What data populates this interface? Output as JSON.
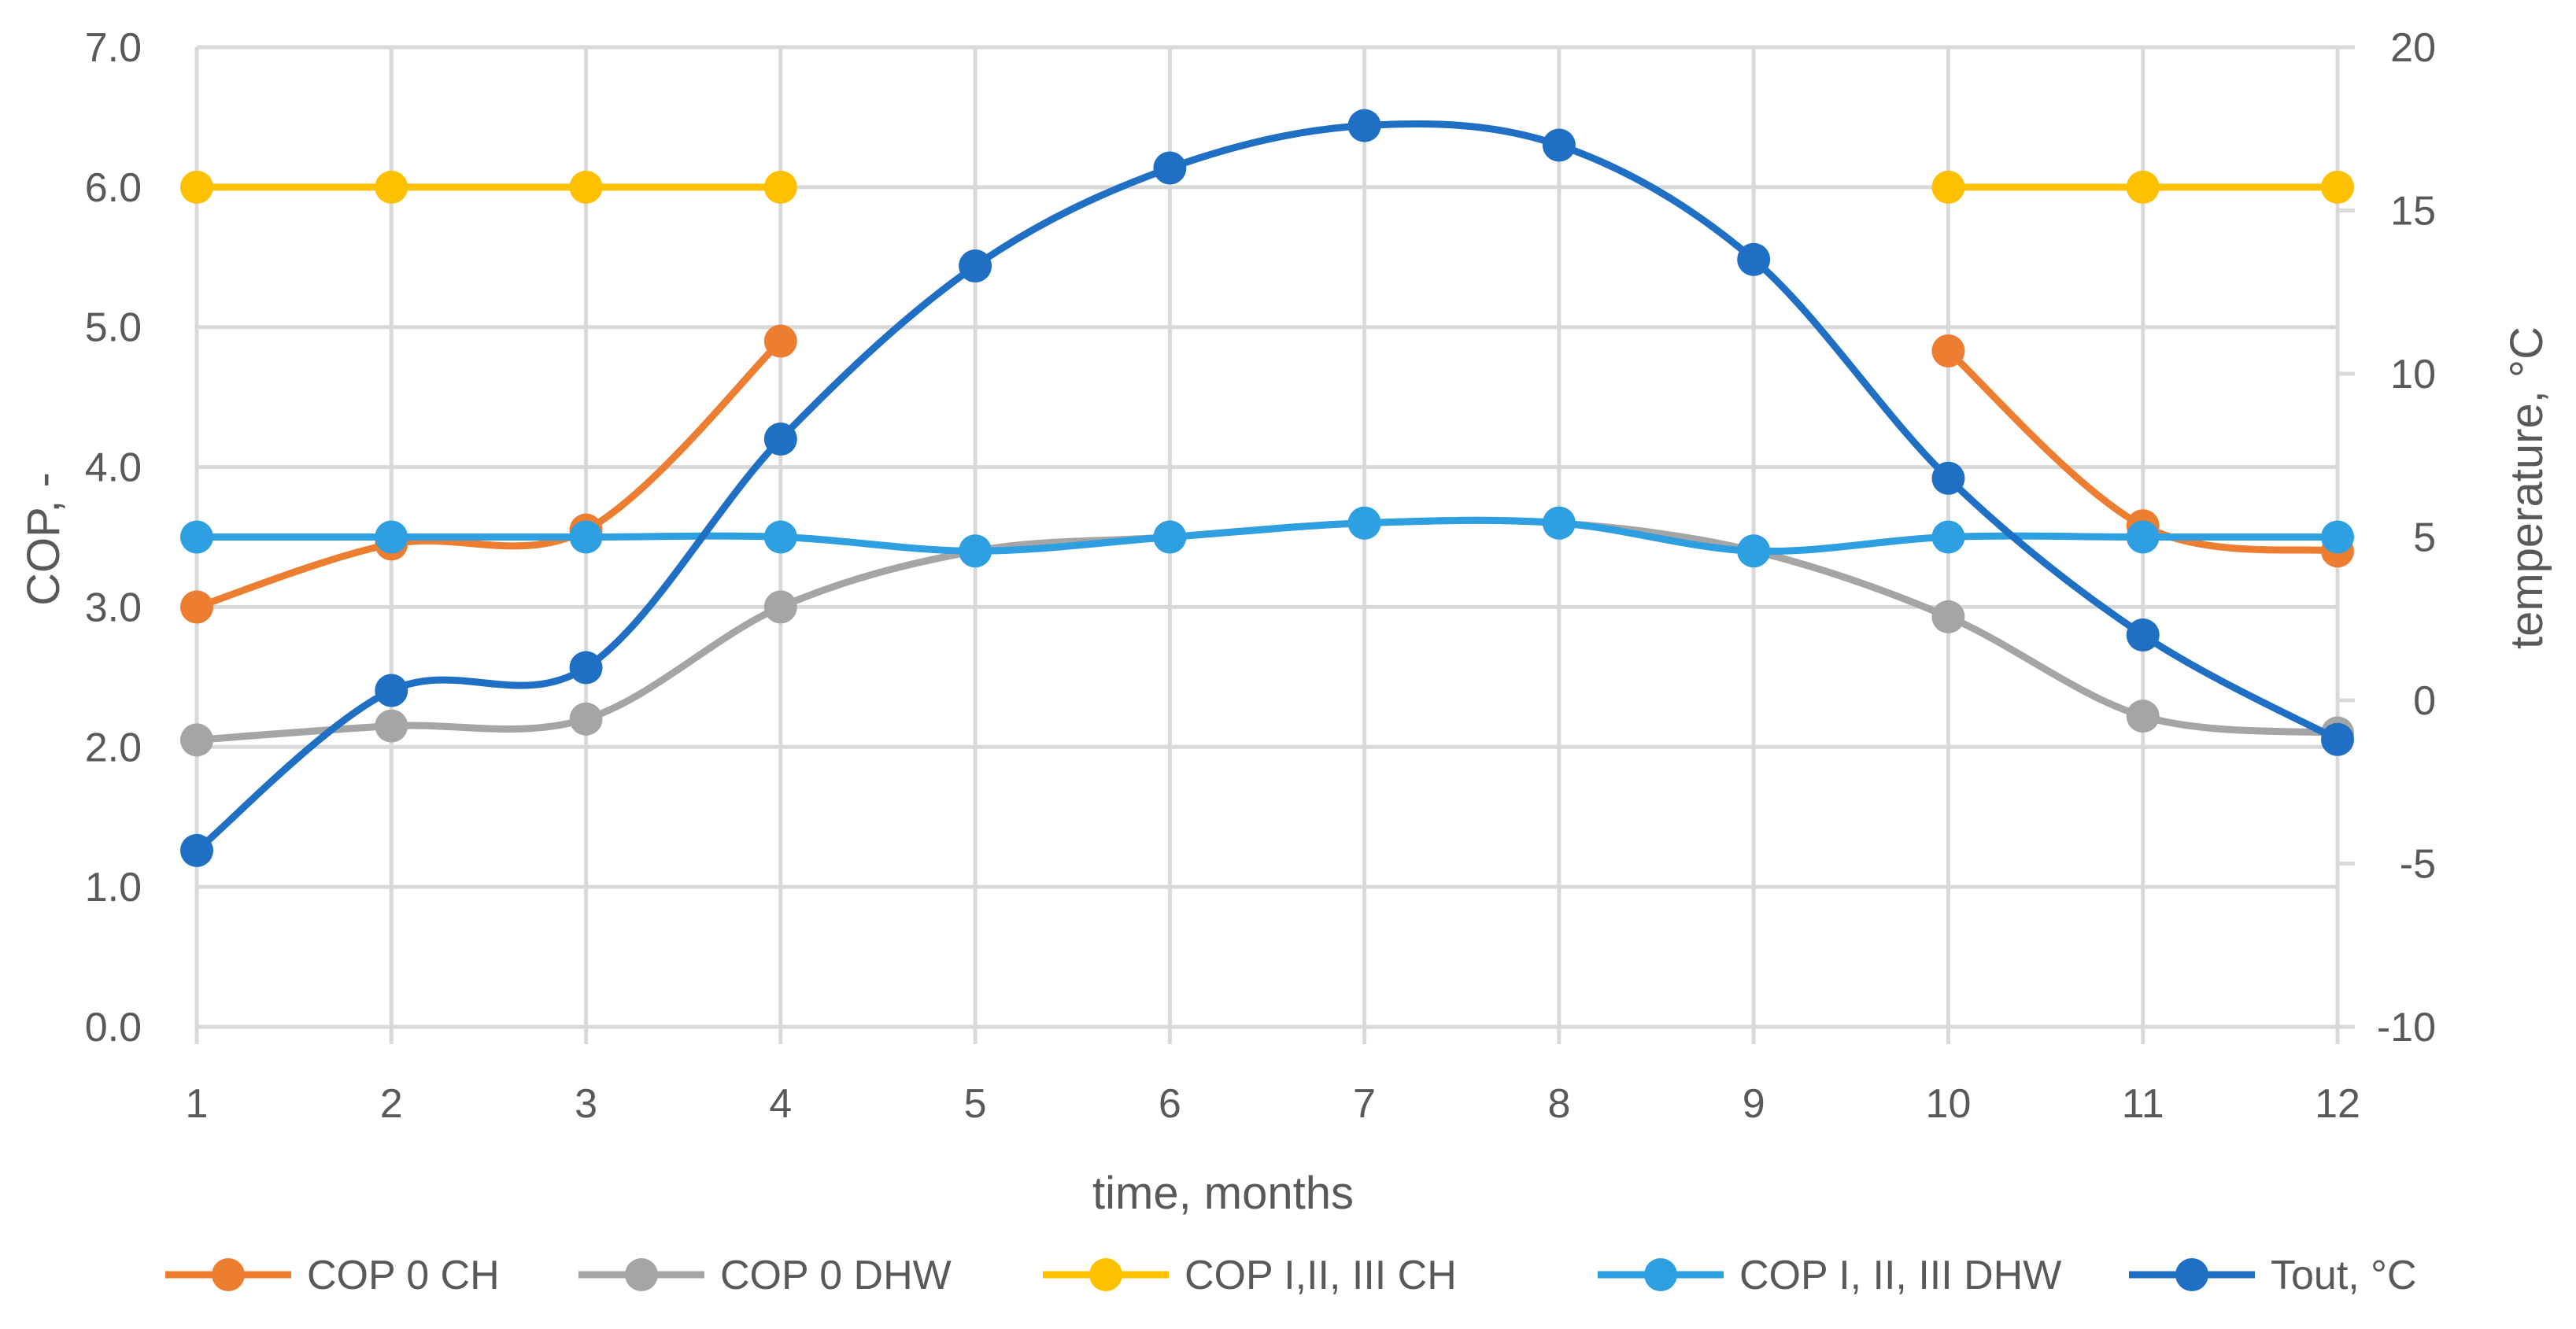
{
  "chart_data": {
    "type": "line",
    "smooth": true,
    "xlabel": "time, months",
    "ylabel": "COP, -",
    "y2label": "temperature, °C",
    "xlim": [
      1,
      12
    ],
    "ylim": [
      0,
      7
    ],
    "y2lim": [
      -10,
      20
    ],
    "grid": true,
    "legend_position": "bottom",
    "x_ticks": [
      "1",
      "2",
      "3",
      "4",
      "5",
      "6",
      "7",
      "8",
      "9",
      "10",
      "11",
      "12"
    ],
    "y_ticks": [
      "0.0",
      "1.0",
      "2.0",
      "3.0",
      "4.0",
      "5.0",
      "6.0",
      "7.0"
    ],
    "y2_ticks": [
      "-10",
      "-5",
      "0",
      "5",
      "10",
      "15",
      "20"
    ],
    "series": [
      {
        "name": "COP 0 CH",
        "color": "#ED7D31",
        "axis": "left",
        "segments": [
          [
            [
              1,
              3.0
            ],
            [
              2,
              3.45
            ],
            [
              3,
              3.55
            ],
            [
              4,
              4.9
            ]
          ],
          [
            [
              10,
              4.83
            ],
            [
              11,
              3.58
            ],
            [
              12,
              3.4
            ]
          ]
        ]
      },
      {
        "name": "COP 0 DHW",
        "color": "#A5A5A5",
        "axis": "left",
        "segments": [
          [
            [
              1,
              2.05
            ],
            [
              2,
              2.15
            ],
            [
              3,
              2.2
            ],
            [
              4,
              3.0
            ],
            [
              5,
              3.4
            ],
            [
              6,
              3.5
            ],
            [
              7,
              3.6
            ],
            [
              8,
              3.6
            ],
            [
              9,
              3.4
            ],
            [
              10,
              2.93
            ],
            [
              11,
              2.22
            ],
            [
              12,
              2.1
            ]
          ]
        ]
      },
      {
        "name": "COP I,II, III CH",
        "color": "#FFC000",
        "axis": "left",
        "segments": [
          [
            [
              1,
              6.0
            ],
            [
              2,
              6.0
            ],
            [
              3,
              6.0
            ],
            [
              4,
              6.0
            ]
          ],
          [
            [
              10,
              6.0
            ],
            [
              11,
              6.0
            ],
            [
              12,
              6.0
            ]
          ]
        ]
      },
      {
        "name": "COP I, II, III DHW",
        "color": "#2E9FE0",
        "axis": "left",
        "segments": [
          [
            [
              1,
              3.5
            ],
            [
              2,
              3.5
            ],
            [
              3,
              3.5
            ],
            [
              4,
              3.5
            ],
            [
              5,
              3.4
            ],
            [
              6,
              3.5
            ],
            [
              7,
              3.6
            ],
            [
              8,
              3.6
            ],
            [
              9,
              3.4
            ],
            [
              10,
              3.5
            ],
            [
              11,
              3.5
            ],
            [
              12,
              3.5
            ]
          ]
        ]
      },
      {
        "name": "Tout, °C",
        "color": "#1F6FC5",
        "axis": "right",
        "segments": [
          [
            [
              1,
              -4.6
            ],
            [
              2,
              0.3
            ],
            [
              3,
              1.0
            ],
            [
              4,
              8.0
            ],
            [
              5,
              13.3
            ],
            [
              6,
              16.3
            ],
            [
              7,
              17.6
            ],
            [
              8,
              17.0
            ],
            [
              9,
              13.5
            ],
            [
              10,
              6.8
            ],
            [
              11,
              2.0
            ],
            [
              12,
              -1.2
            ]
          ]
        ]
      }
    ]
  }
}
